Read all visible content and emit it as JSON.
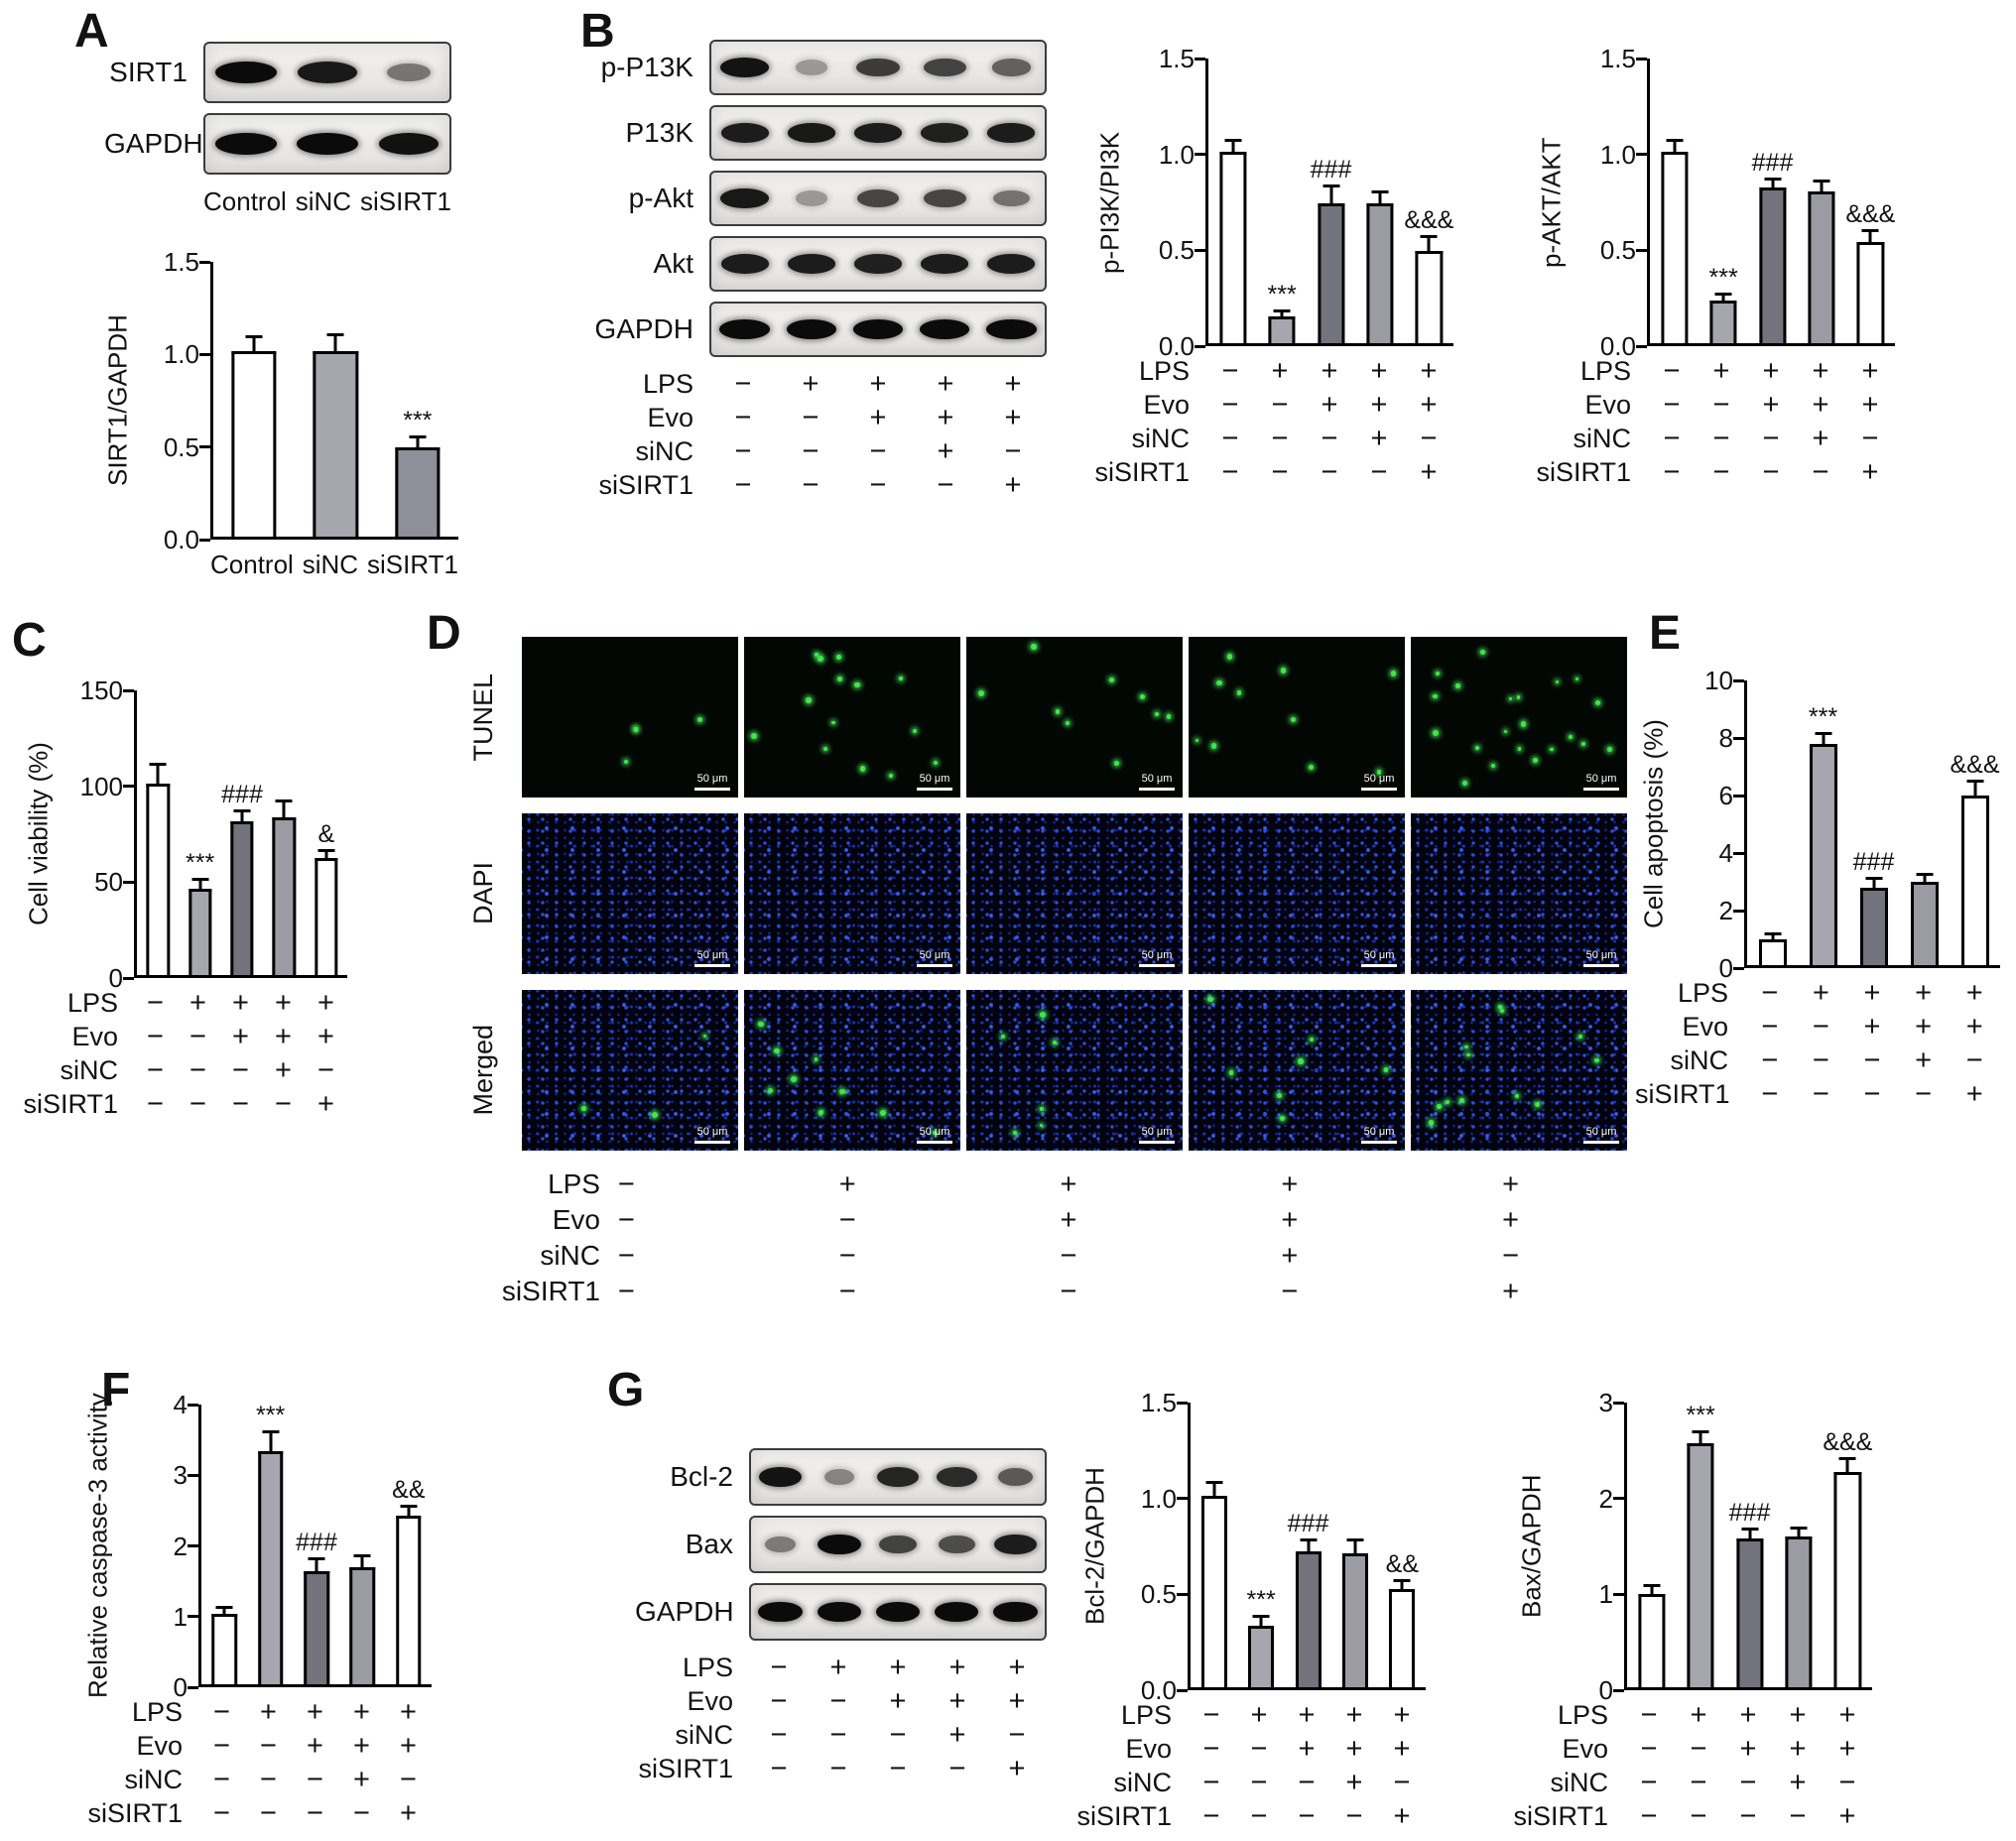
{
  "panel_letters": {
    "A": "A",
    "B": "B",
    "C": "C",
    "D": "D",
    "E": "E",
    "F": "F",
    "G": "G"
  },
  "treatments": {
    "rows": [
      {
        "label": "LPS",
        "signs": [
          "−",
          "+",
          "+",
          "+",
          "+"
        ]
      },
      {
        "label": "Evo",
        "signs": [
          "−",
          "−",
          "+",
          "+",
          "+"
        ]
      },
      {
        "label": "siNC",
        "signs": [
          "−",
          "−",
          "−",
          "+",
          "−"
        ]
      },
      {
        "label": "siSIRT1",
        "signs": [
          "−",
          "−",
          "−",
          "−",
          "+"
        ]
      }
    ]
  },
  "blots": {
    "A": {
      "rows": [
        {
          "label": "SIRT1",
          "bands": [
            1.0,
            0.92,
            0.38
          ]
        },
        {
          "label": "GAPDH",
          "bands": [
            1.0,
            1.0,
            0.96
          ]
        }
      ],
      "lane_labels": [
        "Control",
        "siNC",
        "siSIRT1"
      ]
    },
    "B": {
      "rows": [
        {
          "label": "p-P13K",
          "bands": [
            0.95,
            0.18,
            0.72,
            0.68,
            0.5
          ]
        },
        {
          "label": "P13K",
          "bands": [
            0.9,
            0.92,
            0.9,
            0.88,
            0.9
          ]
        },
        {
          "label": "p-Akt",
          "bands": [
            0.92,
            0.18,
            0.66,
            0.66,
            0.4
          ]
        },
        {
          "label": "Akt",
          "bands": [
            0.9,
            0.9,
            0.88,
            0.9,
            0.9
          ]
        },
        {
          "label": "GAPDH",
          "bands": [
            1.0,
            1.0,
            1.0,
            1.0,
            1.0
          ]
        }
      ],
      "show_treatments": true
    },
    "G": {
      "rows": [
        {
          "label": "Bcl-2",
          "bands": [
            0.95,
            0.3,
            0.85,
            0.82,
            0.55
          ]
        },
        {
          "label": "Bax",
          "bands": [
            0.35,
            1.0,
            0.68,
            0.62,
            0.9
          ]
        },
        {
          "label": "GAPDH",
          "bands": [
            1.0,
            1.0,
            1.0,
            1.0,
            1.0
          ]
        }
      ],
      "show_treatments": true
    }
  },
  "panel_D": {
    "row_labels": [
      "TUNEL",
      "DAPI",
      "Merged"
    ],
    "scale_label": "50 μm",
    "tunel_dot_counts": [
      4,
      14,
      9,
      10,
      21
    ],
    "merged_dot_counts": [
      3,
      9,
      6,
      7,
      12
    ],
    "show_treatments": true
  },
  "chart_data": [
    {
      "id": "A",
      "type": "bar",
      "ylabel": "SIRT1/GAPDH",
      "categories": [
        "Control",
        "siNC",
        "siSIRT1"
      ],
      "values": [
        1.0,
        1.0,
        0.48
      ],
      "errors": [
        0.07,
        0.08,
        0.05
      ],
      "sig": [
        "",
        "",
        "***"
      ],
      "colors": [
        "#ffffff",
        "#a6a6af",
        "#8f8f99"
      ],
      "ylim": [
        0,
        1.5
      ],
      "ytick_values": [
        0,
        0.5,
        1.0,
        1.5
      ],
      "ytick_labels": [
        "0.0",
        "0.5",
        "1.0",
        "1.5"
      ]
    },
    {
      "id": "B1",
      "type": "bar",
      "ylabel": "p-PI3K/PI3K",
      "values": [
        1.0,
        0.14,
        0.73,
        0.73,
        0.48
      ],
      "errors": [
        0.05,
        0.02,
        0.08,
        0.05,
        0.07
      ],
      "sig": [
        "",
        "***",
        "###",
        "",
        "&&&"
      ],
      "colors": [
        "#ffffff",
        "#a6a6af",
        "#73737d",
        "#9b9ba4",
        "#ffffff"
      ],
      "ylim": [
        0,
        1.5
      ],
      "ytick_values": [
        0,
        0.5,
        1.0,
        1.5
      ],
      "ytick_labels": [
        "0.0",
        "0.5",
        "1.0",
        "1.5"
      ],
      "show_treatments": true
    },
    {
      "id": "B2",
      "type": "bar",
      "ylabel": "p-AKT/AKT",
      "values": [
        1.0,
        0.22,
        0.81,
        0.79,
        0.53
      ],
      "errors": [
        0.05,
        0.03,
        0.04,
        0.05,
        0.05
      ],
      "sig": [
        "",
        "***",
        "###",
        "",
        "&&&"
      ],
      "colors": [
        "#ffffff",
        "#a6a6af",
        "#73737d",
        "#9b9ba4",
        "#ffffff"
      ],
      "ylim": [
        0,
        1.5
      ],
      "ytick_values": [
        0,
        0.5,
        1.0,
        1.5
      ],
      "ytick_labels": [
        "0.0",
        "0.5",
        "1.0",
        "1.5"
      ],
      "show_treatments": true
    },
    {
      "id": "C",
      "type": "bar",
      "ylabel": "Cell viability (%)",
      "values": [
        100,
        45,
        80,
        82,
        61
      ],
      "errors": [
        9,
        4,
        5,
        8,
        3
      ],
      "sig": [
        "",
        "***",
        "###",
        "",
        "&"
      ],
      "colors": [
        "#ffffff",
        "#a6a6af",
        "#73737d",
        "#9b9ba4",
        "#ffffff"
      ],
      "ylim": [
        0,
        150
      ],
      "ytick_values": [
        0,
        50,
        100,
        150
      ],
      "ytick_labels": [
        "0",
        "50",
        "100",
        "150"
      ],
      "show_treatments": true
    },
    {
      "id": "E",
      "type": "bar",
      "ylabel": "Cell apoptosis (%)",
      "values": [
        0.9,
        7.7,
        2.7,
        2.9,
        5.9
      ],
      "errors": [
        0.12,
        0.3,
        0.25,
        0.2,
        0.45
      ],
      "sig": [
        "",
        "***",
        "###",
        "",
        "&&&"
      ],
      "colors": [
        "#ffffff",
        "#a6a6af",
        "#73737d",
        "#9b9ba4",
        "#ffffff"
      ],
      "ylim": [
        0,
        10
      ],
      "ytick_values": [
        0,
        2,
        4,
        6,
        8,
        10
      ],
      "ytick_labels": [
        "0",
        "2",
        "4",
        "6",
        "8",
        "10"
      ],
      "show_treatments": true
    },
    {
      "id": "F",
      "type": "bar",
      "ylabel": "Relative caspase-3 activity",
      "values": [
        1.0,
        3.3,
        1.6,
        1.65,
        2.38
      ],
      "errors": [
        0.07,
        0.25,
        0.15,
        0.15,
        0.12
      ],
      "sig": [
        "",
        "***",
        "###",
        "",
        "&&"
      ],
      "colors": [
        "#ffffff",
        "#a6a6af",
        "#73737d",
        "#9b9ba4",
        "#ffffff"
      ],
      "ylim": [
        0,
        4
      ],
      "ytick_values": [
        0,
        1,
        2,
        3,
        4
      ],
      "ytick_labels": [
        "0",
        "1",
        "2",
        "3",
        "4"
      ],
      "show_treatments": true
    },
    {
      "id": "G1",
      "type": "bar",
      "ylabel": "Bcl-2/GAPDH",
      "values": [
        1.0,
        0.32,
        0.71,
        0.7,
        0.51
      ],
      "errors": [
        0.06,
        0.04,
        0.05,
        0.06,
        0.04
      ],
      "sig": [
        "",
        "***",
        "###",
        "",
        "&&"
      ],
      "colors": [
        "#ffffff",
        "#a6a6af",
        "#73737d",
        "#9b9ba4",
        "#ffffff"
      ],
      "ylim": [
        0,
        1.5
      ],
      "ytick_values": [
        0,
        0.5,
        1.0,
        1.5
      ],
      "ytick_labels": [
        "0.0",
        "0.5",
        "1.0",
        "1.5"
      ],
      "show_treatments": true
    },
    {
      "id": "G2",
      "type": "bar",
      "ylabel": "Bax/GAPDH",
      "values": [
        0.97,
        2.55,
        1.55,
        1.57,
        2.25
      ],
      "errors": [
        0.08,
        0.1,
        0.08,
        0.08,
        0.12
      ],
      "sig": [
        "",
        "***",
        "###",
        "",
        "&&&"
      ],
      "colors": [
        "#ffffff",
        "#a6a6af",
        "#73737d",
        "#9b9ba4",
        "#ffffff"
      ],
      "ylim": [
        0,
        3
      ],
      "ytick_values": [
        0,
        1,
        2,
        3
      ],
      "ytick_labels": [
        "0",
        "1",
        "2",
        "3"
      ],
      "show_treatments": true
    }
  ]
}
